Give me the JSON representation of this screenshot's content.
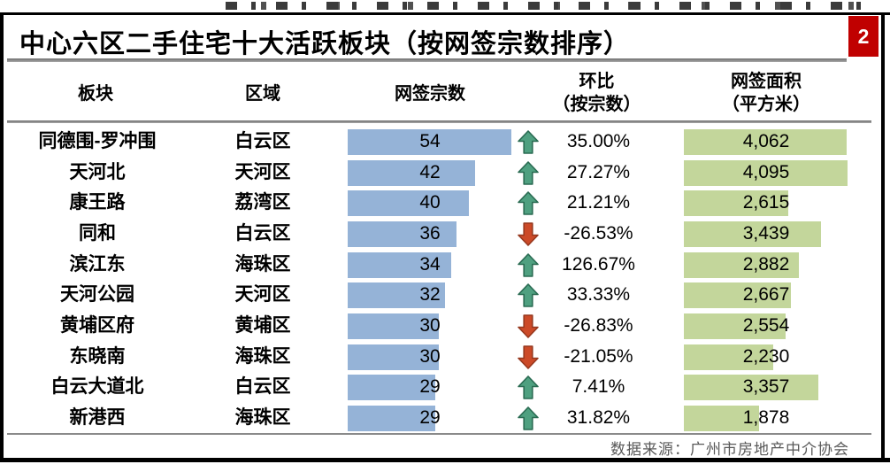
{
  "page": {
    "title": "中心六区二手住宅十大活跃板块（按网签宗数排序）",
    "page_number": "2",
    "source_note": "数据来源：广州市房地产中介协会"
  },
  "colors": {
    "bar_blue": "#95B3D7",
    "bar_green": "#C3D69B",
    "arrow_up_fill": "#4FA080",
    "arrow_up_stroke": "#2A6B52",
    "arrow_down_fill": "#CC4A28",
    "arrow_down_stroke": "#96381E",
    "badge_red": "#C00000",
    "footer_gray": "#595959"
  },
  "table": {
    "headers": {
      "sector": "板块",
      "district": "区域",
      "deals": "网签宗数",
      "mom_line1": "环比",
      "mom_line2": "（按宗数）",
      "area_line1": "网签面积",
      "area_line2": "（平方米）"
    },
    "rows": [
      {
        "sector": "同德围-罗冲围",
        "district": "白云区",
        "deals": 54,
        "mom": 35.0,
        "area": 4062
      },
      {
        "sector": "天河北",
        "district": "天河区",
        "deals": 42,
        "mom": 27.27,
        "area": 4095
      },
      {
        "sector": "康王路",
        "district": "荔湾区",
        "deals": 40,
        "mom": 21.21,
        "area": 2615
      },
      {
        "sector": "同和",
        "district": "白云区",
        "deals": 36,
        "mom": -26.53,
        "area": 3439
      },
      {
        "sector": "滨江东",
        "district": "海珠区",
        "deals": 34,
        "mom": 126.67,
        "area": 2882
      },
      {
        "sector": "天河公园",
        "district": "天河区",
        "deals": 32,
        "mom": 33.33,
        "area": 2667
      },
      {
        "sector": "黄埔区府",
        "district": "黄埔区",
        "deals": 30,
        "mom": -26.83,
        "area": 2554
      },
      {
        "sector": "东晓南",
        "district": "海珠区",
        "deals": 30,
        "mom": -21.05,
        "area": 2230
      },
      {
        "sector": "白云大道北",
        "district": "白云区",
        "deals": 29,
        "mom": 7.41,
        "area": 3357
      },
      {
        "sector": "新港西",
        "district": "海珠区",
        "deals": 29,
        "mom": 31.82,
        "area": 1878
      }
    ]
  },
  "chart_data": {
    "type": "table",
    "title": "中心六区二手住宅十大活跃板块（按网签宗数排序）",
    "categories": [
      "同德围-罗冲围",
      "天河北",
      "康王路",
      "同和",
      "滨江东",
      "天河公园",
      "黄埔区府",
      "东晓南",
      "白云大道北",
      "新港西"
    ],
    "districts": [
      "白云区",
      "天河区",
      "荔湾区",
      "白云区",
      "海珠区",
      "天河区",
      "黄埔区",
      "海珠区",
      "白云区",
      "海珠区"
    ],
    "series": [
      {
        "name": "网签宗数",
        "type": "bar",
        "color": "#95B3D7",
        "values": [
          54,
          42,
          40,
          36,
          34,
          32,
          30,
          30,
          29,
          29
        ]
      },
      {
        "name": "环比（按宗数）",
        "type": "value",
        "unit": "%",
        "values": [
          35.0,
          27.27,
          21.21,
          -26.53,
          126.67,
          33.33,
          -26.83,
          -21.05,
          7.41,
          31.82
        ]
      },
      {
        "name": "网签面积（平方米）",
        "type": "bar",
        "color": "#C3D69B",
        "values": [
          4062,
          4095,
          2615,
          3439,
          2882,
          2667,
          2554,
          2230,
          3357,
          1878
        ]
      }
    ],
    "legend_position": "none",
    "grid": false,
    "source": "数据来源：广州市房地产中介协会"
  }
}
